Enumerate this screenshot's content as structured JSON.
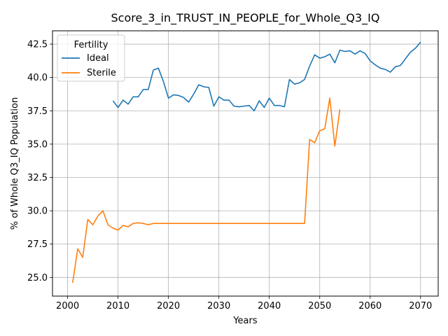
{
  "chart_data": {
    "type": "line",
    "title": "Score_3_in_TRUST_IN_PEOPLE_for_Whole_Q3_IQ",
    "xlabel": "Years",
    "ylabel": "% of Whole Q3_IQ Population",
    "xlim": [
      1997,
      2073.5
    ],
    "ylim": [
      23.6,
      43.5
    ],
    "xticks": [
      2000,
      2010,
      2020,
      2030,
      2040,
      2050,
      2060,
      2070
    ],
    "yticks": [
      25.0,
      27.5,
      30.0,
      32.5,
      35.0,
      37.5,
      40.0,
      42.5
    ],
    "grid": true,
    "legend": {
      "title": "Fertility",
      "position": "top-left"
    },
    "series": [
      {
        "name": "Ideal",
        "color": "#1f77b4",
        "x": [
          2009,
          2010,
          2011,
          2012,
          2013,
          2014,
          2015,
          2016,
          2017,
          2018,
          2019,
          2020,
          2021,
          2022,
          2023,
          2024,
          2025,
          2026,
          2027,
          2028,
          2029,
          2030,
          2031,
          2032,
          2033,
          2034,
          2035,
          2036,
          2037,
          2038,
          2039,
          2040,
          2041,
          2042,
          2043,
          2044,
          2045,
          2046,
          2047,
          2048,
          2049,
          2050,
          2051,
          2052,
          2053,
          2054,
          2055,
          2056,
          2057,
          2058,
          2059,
          2060,
          2061,
          2062,
          2063,
          2064,
          2065,
          2066,
          2067,
          2068,
          2069,
          2070
        ],
        "y": [
          38.25,
          37.75,
          38.3,
          38.0,
          38.55,
          38.55,
          39.1,
          39.1,
          40.55,
          40.7,
          39.7,
          38.45,
          38.7,
          38.65,
          38.5,
          38.15,
          38.75,
          39.45,
          39.3,
          39.25,
          37.85,
          38.55,
          38.3,
          38.3,
          37.85,
          37.8,
          37.85,
          37.9,
          37.5,
          38.25,
          37.75,
          38.45,
          37.9,
          37.9,
          37.8,
          39.85,
          39.5,
          39.6,
          39.85,
          40.85,
          41.7,
          41.45,
          41.55,
          41.75,
          41.1,
          42.05,
          41.95,
          42.0,
          41.75,
          42.0,
          41.8,
          41.25,
          40.95,
          40.7,
          40.6,
          40.4,
          40.8,
          40.9,
          41.4,
          41.9,
          42.2,
          42.65
        ]
      },
      {
        "name": "Sterile",
        "color": "#ff7f0e",
        "x": [
          2001,
          2002,
          2003,
          2004,
          2005,
          2006,
          2007,
          2008,
          2009,
          2010,
          2011,
          2012,
          2013,
          2014,
          2015,
          2016,
          2017,
          2018,
          2019,
          2020,
          2021,
          2022,
          2023,
          2024,
          2025,
          2026,
          2027,
          2028,
          2029,
          2030,
          2031,
          2032,
          2033,
          2034,
          2035,
          2036,
          2037,
          2038,
          2039,
          2040,
          2041,
          2042,
          2043,
          2044,
          2045,
          2046,
          2047,
          2048,
          2049,
          2050,
          2051,
          2052,
          2053,
          2054
        ],
        "y": [
          24.6,
          27.15,
          26.5,
          29.35,
          28.95,
          29.6,
          30.0,
          28.95,
          28.7,
          28.55,
          28.9,
          28.8,
          29.05,
          29.1,
          29.05,
          28.95,
          29.05,
          29.05,
          29.05,
          29.05,
          29.05,
          29.05,
          29.05,
          29.05,
          29.05,
          29.05,
          29.05,
          29.05,
          29.05,
          29.05,
          29.05,
          29.05,
          29.05,
          29.05,
          29.05,
          29.05,
          29.05,
          29.05,
          29.05,
          29.05,
          29.05,
          29.05,
          29.05,
          29.05,
          29.05,
          29.05,
          29.05,
          35.35,
          35.1,
          36.0,
          36.15,
          38.45,
          34.85,
          37.6
        ]
      }
    ]
  }
}
